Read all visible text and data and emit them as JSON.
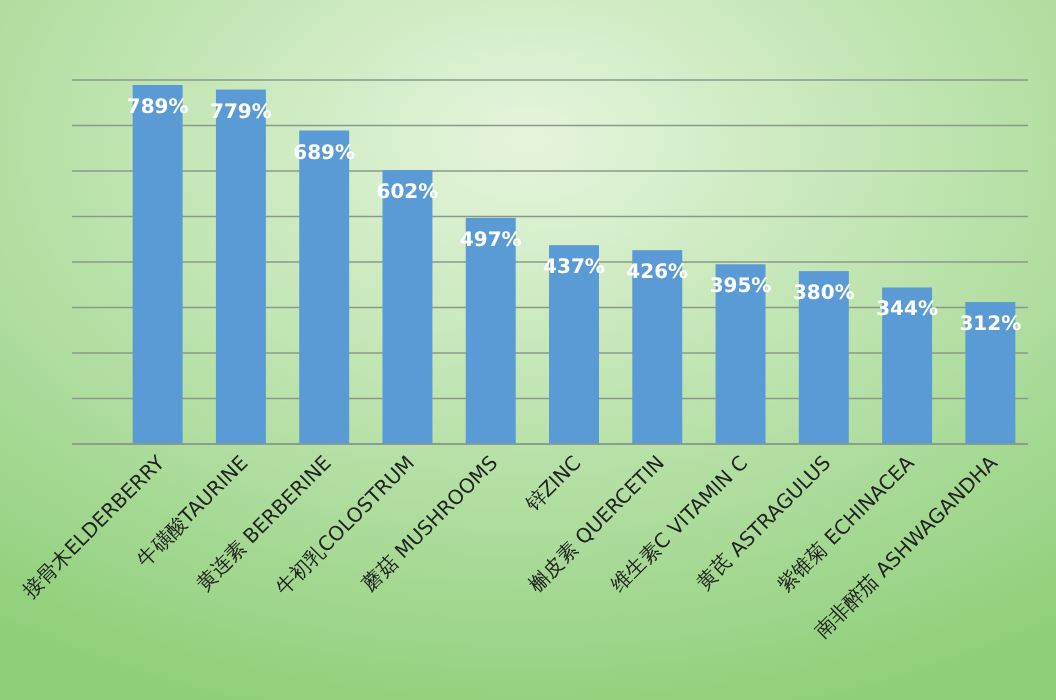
{
  "chart_data": {
    "type": "bar",
    "categories": [
      "接骨木ELDERBERRY",
      "牛磺酸TAURINE",
      "黄连素 BERBERINE",
      "牛初乳COLOSTRUM",
      "蘑菇 MUSHROOMS",
      "锌ZINC",
      "槲皮素 QUERCETIN",
      "维生素C VITAMIN C",
      "黄芪 ASTRAGULUS",
      "紫锥菊 ECHINACEA",
      "南非醉茄 ASHWAGANDHA"
    ],
    "values": [
      789,
      779,
      689,
      602,
      497,
      437,
      426,
      395,
      380,
      344,
      312
    ],
    "value_labels": [
      "789%",
      "779%",
      "689%",
      "602%",
      "497%",
      "437%",
      "426%",
      "395%",
      "380%",
      "344%",
      "312%"
    ],
    "color": "#5b9bd5",
    "ylim": [
      0,
      800
    ],
    "yticks": [
      {
        "value": 0,
        "label": null
      },
      {
        "value": 100,
        "label": null
      },
      {
        "value": 200,
        "label": null
      },
      {
        "value": 300,
        "label": null
      },
      {
        "value": 400,
        "label": null
      },
      {
        "value": 500,
        "label": null
      },
      {
        "value": 600,
        "label": null
      },
      {
        "value": 700,
        "label": null
      },
      {
        "value": 800,
        "label": null
      }
    ],
    "grid": "y",
    "tick_labels": "x"
  }
}
